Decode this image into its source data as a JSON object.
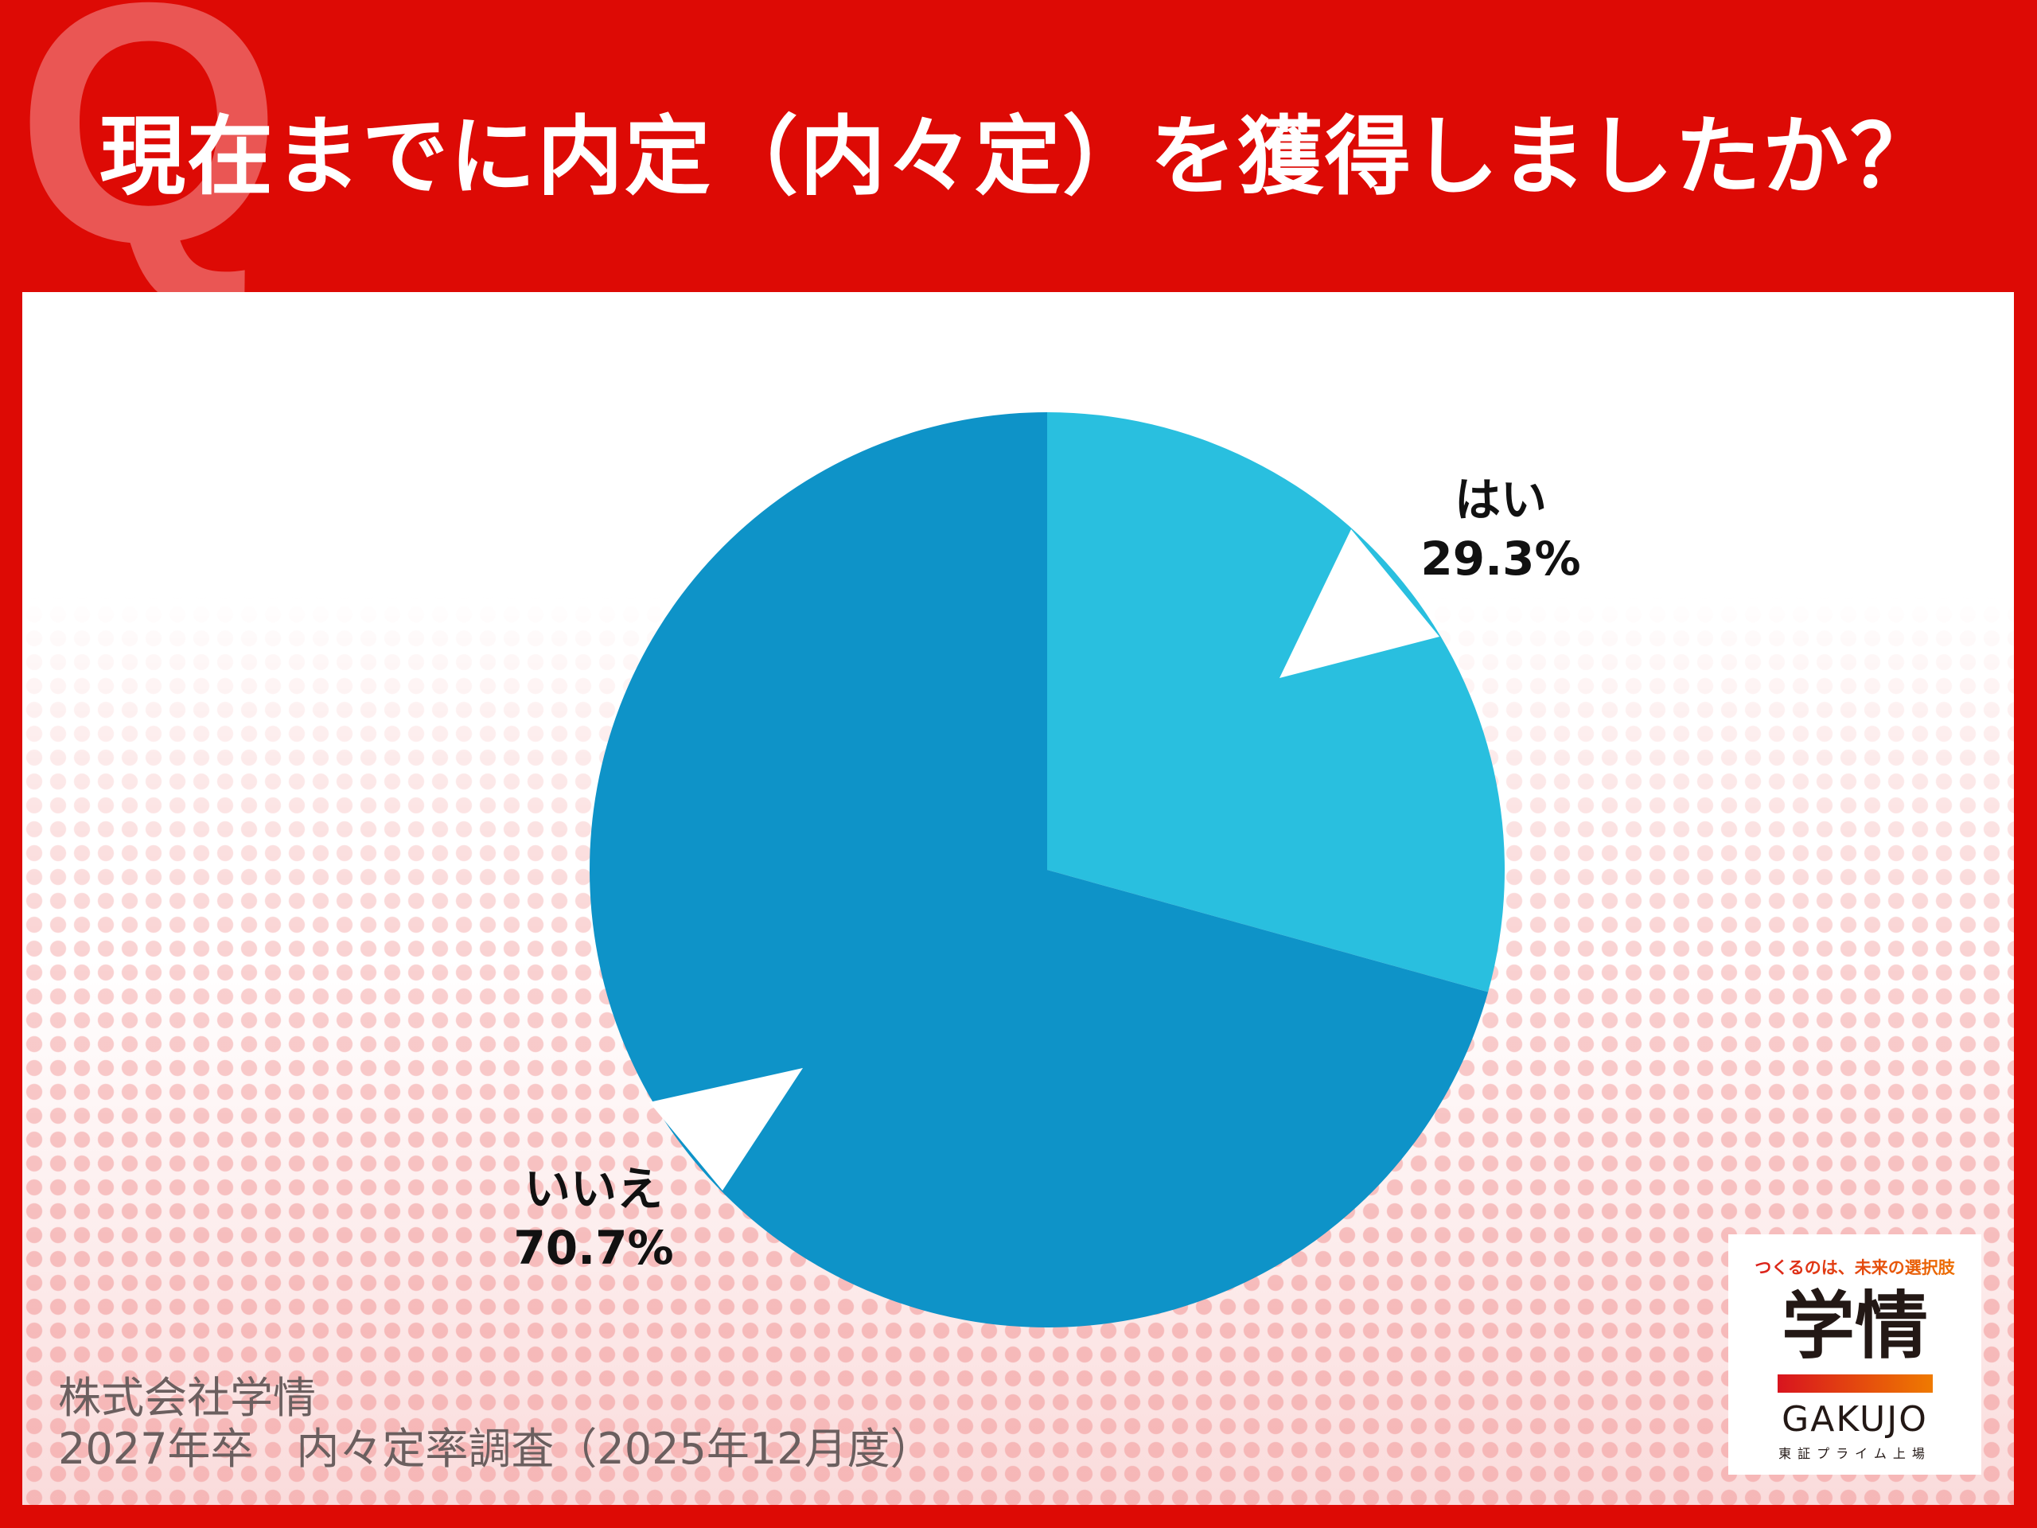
{
  "header": {
    "q_mark": "Q",
    "title": "現在までに内定（内々定）を獲得しましたか？"
  },
  "chart_data": {
    "type": "pie",
    "title": "現在までに内定（内々定）を獲得しましたか？",
    "categories": [
      "はい",
      "いいえ"
    ],
    "values": [
      29.3,
      70.7
    ],
    "value_labels": [
      "29.3%",
      "70.7%"
    ],
    "colors": [
      "#29bfdf",
      "#0e93c8"
    ],
    "start": "12 o'clock, clockwise"
  },
  "footer": {
    "line1": "株式会社学情",
    "line2": "2027年卒　内々定率調査（2025年12月度）"
  },
  "logo": {
    "tagline": "つくるのは、未来の選択肢",
    "name": "学情",
    "name_en": "GAKUJO",
    "listing": "東証プライム上場"
  },
  "colors": {
    "background": "#dd0a05",
    "accent": "#ea5654"
  }
}
